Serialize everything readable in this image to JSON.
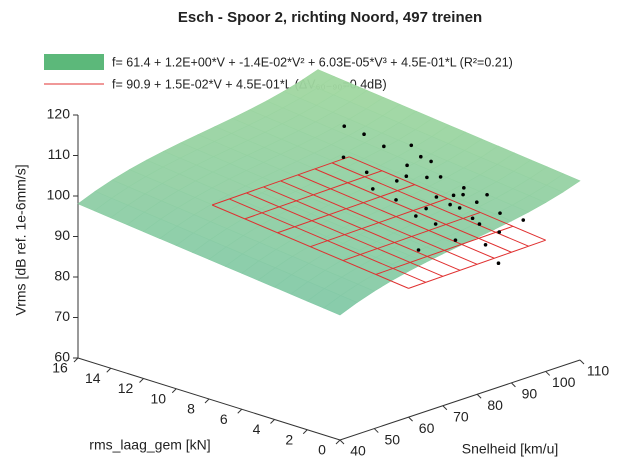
{
  "chart_data": {
    "type": "scatter3d",
    "title": "Esch - Spoor 2, richting Noord, 497 treinen",
    "xlabel": "Snelheid [km/u]",
    "ylabel": "rms_laag_gem [kN]",
    "zlabel": "Vrms [dB ref. 1e-6mm/s]",
    "xlim": [
      40,
      110
    ],
    "xticks": [
      40,
      50,
      60,
      70,
      80,
      90,
      100,
      110
    ],
    "ylim": [
      0,
      16
    ],
    "yticks": [
      0,
      2,
      4,
      6,
      8,
      10,
      12,
      14,
      16
    ],
    "zlim": [
      60,
      120
    ],
    "zticks": [
      60,
      70,
      80,
      90,
      100,
      110,
      120
    ],
    "surface": {
      "name": "f= 61.4 + 1.2E+00*V + -1.4E-02*V² + 6.03E-05*V³ + 4.5E-01*L (R²=0.21)",
      "color": "#5cb87a",
      "coefficients": [
        61.4,
        1.2,
        -0.014,
        6.03e-05,
        0.45
      ]
    },
    "plane": {
      "name": "f= 90.9 + 1.5E-02*V + 4.5E-01*L (ΔV₆₀₋₉₀=0.4dB)",
      "color": "#e03030",
      "coefficients": [
        90.9,
        0.015,
        0.45
      ]
    },
    "points": {
      "color": "#000000",
      "x": [
        88,
        90,
        92,
        95,
        97,
        93,
        86,
        84,
        99,
        101,
        96,
        94,
        89,
        87,
        91,
        98,
        100,
        102,
        85,
        83,
        92,
        95,
        97,
        90,
        88,
        103,
        99,
        86,
        94,
        96,
        82,
        91,
        100,
        93,
        89
      ],
      "y": [
        6,
        7,
        5,
        4,
        5,
        3,
        8,
        9,
        4,
        3,
        2,
        6,
        5,
        4,
        8,
        6,
        5,
        4,
        6,
        7,
        2,
        3,
        7,
        9,
        3,
        2,
        8,
        5,
        4,
        5,
        4,
        1,
        7,
        7,
        10
      ],
      "z": [
        104,
        101,
        99,
        100,
        98,
        96,
        103,
        106,
        97,
        95,
        93,
        102,
        97,
        95,
        108,
        101,
        99,
        98,
        99,
        101,
        91,
        94,
        105,
        110,
        92,
        94,
        106,
        96,
        97,
        96,
        90,
        88,
        103,
        104,
        111
      ]
    }
  }
}
